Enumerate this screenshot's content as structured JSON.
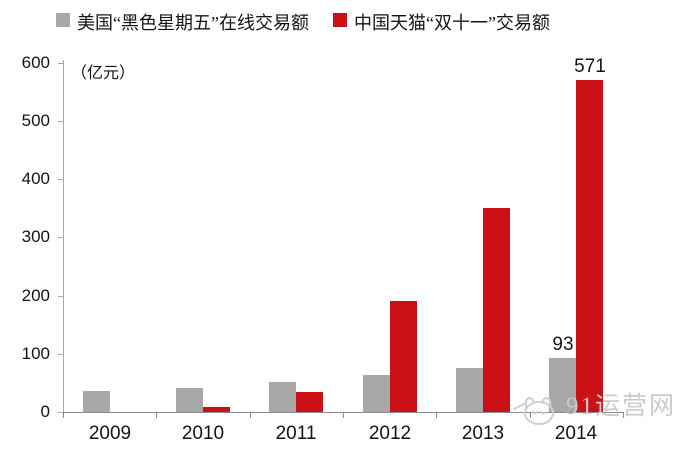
{
  "chart_data": {
    "type": "bar",
    "categories": [
      "2009",
      "2010",
      "2011",
      "2012",
      "2013",
      "2014"
    ],
    "series": [
      {
        "name": "美国“黑色星期五”在线交易额",
        "color": "#a8a8a8",
        "values": [
          36,
          42,
          51,
          64,
          75,
          93
        ]
      },
      {
        "name": "中国天猫“双十一”交易额",
        "color": "#cb1016",
        "values": [
          0,
          9,
          34,
          191,
          350,
          571
        ]
      }
    ],
    "unit_label": "（亿元）",
    "title": "",
    "xlabel": "",
    "ylabel": "",
    "ylim": [
      0,
      600
    ],
    "yticks": [
      0,
      100,
      200,
      300,
      400,
      500,
      600
    ],
    "grid": false,
    "legend_position": "top",
    "data_labels": [
      {
        "category": "2014",
        "series": 0,
        "text": "93"
      },
      {
        "category": "2014",
        "series": 1,
        "text": "571"
      }
    ]
  },
  "watermark": {
    "text": "91运营网"
  },
  "colors": {
    "axis": "#a9a9a9",
    "text": "#141414",
    "watermark": "#cbcbcb"
  }
}
